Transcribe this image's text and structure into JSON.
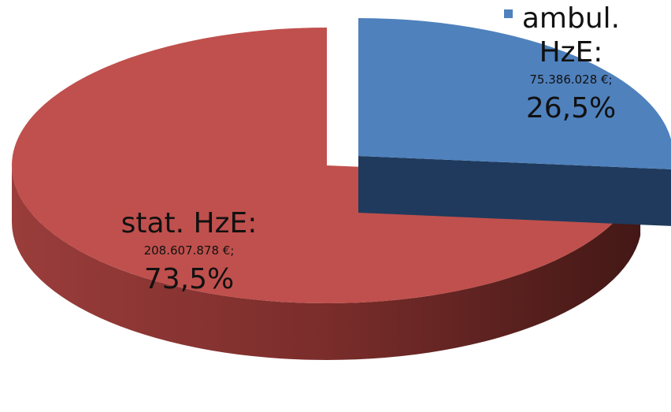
{
  "chart_data": {
    "type": "pie",
    "categories": [
      "ambul. HzE:",
      "stat. HzE:"
    ],
    "values": [
      75386028,
      208607878
    ],
    "value_labels": [
      "75.386.028 €;",
      "208.607.878 €;"
    ],
    "percentages": [
      26.5,
      73.5
    ],
    "percentage_labels": [
      "26,5%",
      "73,5%"
    ],
    "colors": [
      "#4f81bd",
      "#c0504d"
    ]
  }
}
